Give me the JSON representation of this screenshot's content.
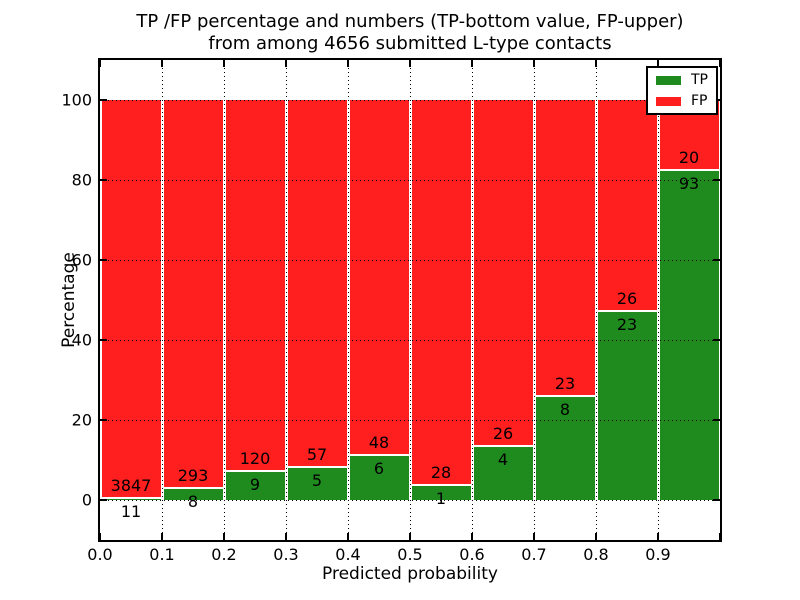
{
  "title": {
    "line1": "TP /FP percentage and numbers (TP-bottom value, FP-upper)",
    "line2": "from among 4656 submitted L-type contacts"
  },
  "axes": {
    "ylabel": "Percentage",
    "xlabel": "Predicted probability",
    "xtick_labels": [
      "0.0",
      "0.1",
      "0.2",
      "0.3",
      "0.4",
      "0.5",
      "0.6",
      "0.7",
      "0.8",
      "0.9"
    ],
    "ytick_labels": [
      "0",
      "20",
      "40",
      "60",
      "80",
      "100"
    ],
    "ytick_values": [
      0,
      20,
      40,
      60,
      80,
      100
    ]
  },
  "legend": {
    "entries": [
      {
        "label": "TP",
        "color": "#1f8b1f"
      },
      {
        "label": "FP",
        "color": "#ff1f1f"
      }
    ]
  },
  "colors": {
    "tp_green": "#1f8b1f",
    "fp_red": "#ff1f1f",
    "grid": "#000000",
    "text": "#000000"
  },
  "chart_data": {
    "type": "bar",
    "stacked": true,
    "normalized_to_percent": 100,
    "title": "TP /FP percentage and numbers (TP-bottom value, FP-upper) from among 4656 submitted L-type contacts",
    "xlabel": "Predicted probability",
    "ylabel": "Percentage",
    "xlim": [
      0.0,
      1.0
    ],
    "ylim": [
      -10,
      110
    ],
    "grid": true,
    "legend_position": "upper right",
    "total_contacts": 4656,
    "bin_edges": [
      0.0,
      0.1,
      0.2,
      0.3,
      0.4,
      0.5,
      0.6,
      0.7,
      0.8,
      0.9,
      1.0
    ],
    "categories": [
      "0.0-0.1",
      "0.1-0.2",
      "0.2-0.3",
      "0.3-0.4",
      "0.4-0.5",
      "0.5-0.6",
      "0.6-0.7",
      "0.7-0.8",
      "0.8-0.9",
      "0.9-1.0"
    ],
    "series": [
      {
        "name": "TP",
        "color": "#1f8b1f",
        "position": "bottom",
        "counts": [
          11,
          8,
          9,
          5,
          6,
          1,
          4,
          8,
          23,
          93
        ]
      },
      {
        "name": "FP",
        "color": "#ff1f1f",
        "position": "top",
        "counts": [
          3847,
          293,
          120,
          57,
          48,
          28,
          26,
          23,
          26,
          20
        ]
      }
    ]
  }
}
